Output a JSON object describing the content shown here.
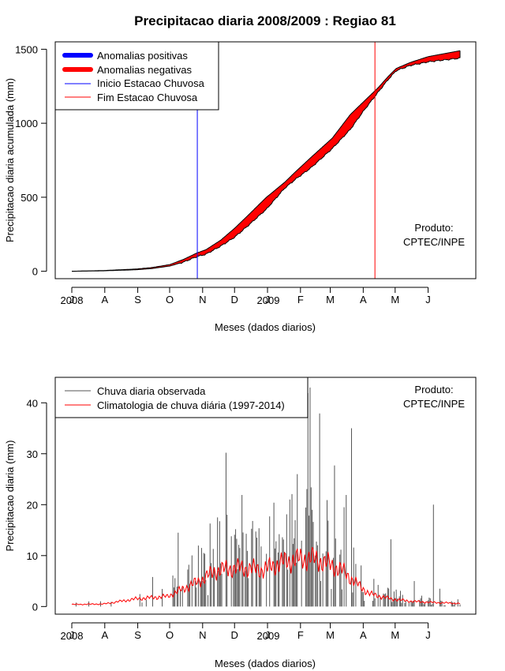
{
  "title": "Precipitacao diaria 2008/2009 : Regiao 81",
  "chart_data": [
    {
      "type": "area",
      "ylabel": "Precipitacao diaria acumulada (mm)",
      "xlabel": "Meses (dados diarios)",
      "x_ticks": [
        "J",
        "A",
        "S",
        "O",
        "N",
        "D",
        "J",
        "F",
        "M",
        "A",
        "M",
        "J"
      ],
      "year_labels": {
        "start": "2008",
        "mid": "2009"
      },
      "y_ticks": [
        "0",
        "500",
        "1000",
        "1500"
      ],
      "ylim": [
        -50,
        1550
      ],
      "days_range": [
        0,
        365
      ],
      "watermark": [
        "Produto:",
        "CPTEC/INPE"
      ],
      "legend": {
        "position": "top-left",
        "entries": [
          {
            "label": "Anomalias positivas",
            "color": "#0000ff",
            "style": "thick"
          },
          {
            "label": "Anomalias negativas",
            "color": "#ff0000",
            "style": "thick"
          },
          {
            "label": "Inicio Estacao Chuvosa",
            "color": "#0000ff",
            "style": "thin"
          },
          {
            "label": "Fim Estacao Chuvosa",
            "color": "#ff0000",
            "style": "thin"
          }
        ]
      },
      "season_start": "2008-10-27",
      "season_end": "2009-04-12",
      "observed_cumulative": [
        [
          0,
          0
        ],
        [
          30,
          3
        ],
        [
          60,
          10
        ],
        [
          75,
          18
        ],
        [
          92,
          35
        ],
        [
          105,
          62
        ],
        [
          118,
          100
        ],
        [
          126,
          115
        ],
        [
          140,
          170
        ],
        [
          153,
          230
        ],
        [
          166,
          310
        ],
        [
          183,
          420
        ],
        [
          200,
          560
        ],
        [
          210,
          620
        ],
        [
          225,
          700
        ],
        [
          245,
          830
        ],
        [
          262,
          960
        ],
        [
          275,
          1090
        ],
        [
          288,
          1210
        ],
        [
          298,
          1300
        ],
        [
          305,
          1355
        ],
        [
          318,
          1390
        ],
        [
          335,
          1415
        ],
        [
          365,
          1440
        ]
      ],
      "climatology_cumulative": [
        [
          0,
          0
        ],
        [
          30,
          5
        ],
        [
          60,
          15
        ],
        [
          75,
          25
        ],
        [
          92,
          45
        ],
        [
          105,
          80
        ],
        [
          118,
          125
        ],
        [
          126,
          145
        ],
        [
          140,
          210
        ],
        [
          153,
          290
        ],
        [
          166,
          380
        ],
        [
          183,
          500
        ],
        [
          200,
          600
        ],
        [
          210,
          670
        ],
        [
          225,
          770
        ],
        [
          245,
          900
        ],
        [
          262,
          1060
        ],
        [
          275,
          1150
        ],
        [
          288,
          1240
        ],
        [
          298,
          1320
        ],
        [
          305,
          1370
        ],
        [
          318,
          1410
        ],
        [
          335,
          1450
        ],
        [
          365,
          1490
        ]
      ]
    },
    {
      "type": "bar",
      "ylabel": "Precipitacao diaria (mm)",
      "xlabel": "Meses (dados diarios)",
      "x_ticks": [
        "J",
        "A",
        "S",
        "O",
        "N",
        "D",
        "J",
        "F",
        "M",
        "A",
        "M",
        "J"
      ],
      "year_labels": {
        "start": "2008",
        "mid": "2009"
      },
      "y_ticks": [
        "0",
        "10",
        "20",
        "30",
        "40"
      ],
      "ylim": [
        -1.5,
        45
      ],
      "days_range": [
        0,
        365
      ],
      "watermark": [
        "Produto:",
        "CPTEC/INPE"
      ],
      "legend": {
        "position": "top-left",
        "entries": [
          {
            "label": "Chuva diaria observada",
            "color": "#555555",
            "style": "thin"
          },
          {
            "label": "Climatologia de chuva diária (1997-2014)",
            "color": "#ff0000",
            "style": "thin"
          }
        ]
      },
      "observed_daily_peaks": [
        [
          76,
          5.8
        ],
        [
          100,
          14.5
        ],
        [
          110,
          8.2
        ],
        [
          122,
          11.5
        ],
        [
          130,
          16.3
        ],
        [
          137,
          17.5
        ],
        [
          145,
          30.2
        ],
        [
          150,
          13.8
        ],
        [
          160,
          21.9
        ],
        [
          170,
          16.8
        ],
        [
          178,
          11.8
        ],
        [
          190,
          20.4
        ],
        [
          198,
          13.6
        ],
        [
          212,
          26.0
        ],
        [
          222,
          41.9
        ],
        [
          224,
          43.0
        ],
        [
          226,
          19.0
        ],
        [
          233,
          37.9
        ],
        [
          247,
          27.7
        ],
        [
          252,
          10.2
        ],
        [
          256,
          19.5
        ],
        [
          258,
          21.9
        ],
        [
          263,
          35.0
        ],
        [
          300,
          13.2
        ],
        [
          322,
          5.0
        ],
        [
          340,
          20.0
        ],
        [
          346,
          3.5
        ]
      ],
      "climatology_daily": [
        [
          0,
          0.4
        ],
        [
          30,
          0.5
        ],
        [
          60,
          1.5
        ],
        [
          90,
          2.0
        ],
        [
          105,
          3.5
        ],
        [
          120,
          5.0
        ],
        [
          135,
          7.0
        ],
        [
          150,
          7.5
        ],
        [
          165,
          7.5
        ],
        [
          180,
          7.2
        ],
        [
          195,
          8.5
        ],
        [
          210,
          9.2
        ],
        [
          225,
          9.5
        ],
        [
          240,
          8.5
        ],
        [
          255,
          7.0
        ],
        [
          265,
          5.0
        ],
        [
          280,
          2.5
        ],
        [
          300,
          1.5
        ],
        [
          320,
          1.0
        ],
        [
          340,
          0.8
        ],
        [
          365,
          0.6
        ]
      ]
    }
  ]
}
